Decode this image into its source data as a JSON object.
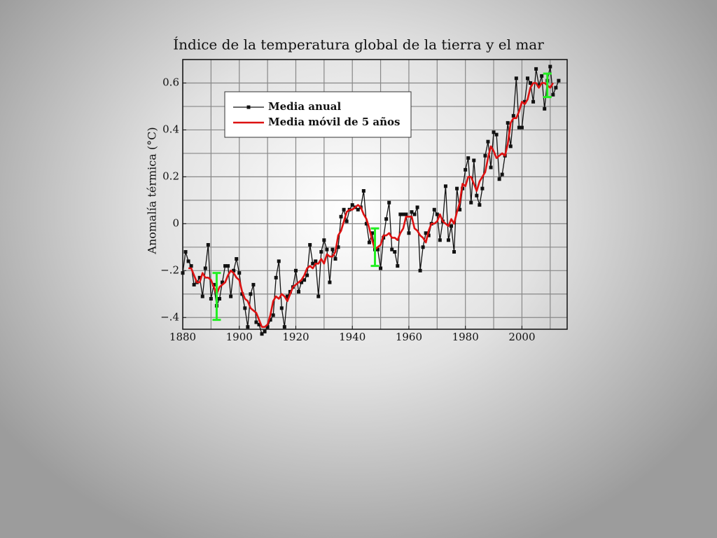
{
  "chart_data": {
    "type": "line",
    "title": "Índice de la temperatura global de la tierra y el mar",
    "y_label": "Anomalía térmica (°C)",
    "x": [
      1880,
      1881,
      1882,
      1883,
      1884,
      1885,
      1886,
      1887,
      1888,
      1889,
      1890,
      1891,
      1892,
      1893,
      1894,
      1895,
      1896,
      1897,
      1898,
      1899,
      1900,
      1901,
      1902,
      1903,
      1904,
      1905,
      1906,
      1907,
      1908,
      1909,
      1910,
      1911,
      1912,
      1913,
      1914,
      1915,
      1916,
      1917,
      1918,
      1919,
      1920,
      1921,
      1922,
      1923,
      1924,
      1925,
      1926,
      1927,
      1928,
      1929,
      1930,
      1931,
      1932,
      1933,
      1934,
      1935,
      1936,
      1937,
      1938,
      1939,
      1940,
      1941,
      1942,
      1943,
      1944,
      1945,
      1946,
      1947,
      1948,
      1949,
      1950,
      1951,
      1952,
      1953,
      1954,
      1955,
      1956,
      1957,
      1958,
      1959,
      1960,
      1961,
      1962,
      1963,
      1964,
      1965,
      1966,
      1967,
      1968,
      1969,
      1970,
      1971,
      1972,
      1973,
      1974,
      1975,
      1976,
      1977,
      1978,
      1979,
      1980,
      1981,
      1982,
      1983,
      1984,
      1985,
      1986,
      1987,
      1988,
      1989,
      1990,
      1991,
      1992,
      1993,
      1994,
      1995,
      1996,
      1997,
      1998,
      1999,
      2000,
      2001,
      2002,
      2003,
      2004,
      2005,
      2006,
      2007,
      2008,
      2009,
      2010,
      2011,
      2012,
      2013
    ],
    "series": [
      {
        "name": "Media anual",
        "color": "#111111",
        "marker": "square",
        "values": [
          -0.21,
          -0.12,
          -0.16,
          -0.18,
          -0.26,
          -0.25,
          -0.23,
          -0.31,
          -0.19,
          -0.09,
          -0.32,
          -0.26,
          -0.35,
          -0.32,
          -0.25,
          -0.18,
          -0.18,
          -0.31,
          -0.2,
          -0.15,
          -0.21,
          -0.3,
          -0.36,
          -0.44,
          -0.3,
          -0.26,
          -0.42,
          -0.43,
          -0.47,
          -0.46,
          -0.44,
          -0.41,
          -0.39,
          -0.23,
          -0.16,
          -0.36,
          -0.44,
          -0.31,
          -0.29,
          -0.27,
          -0.2,
          -0.29,
          -0.25,
          -0.24,
          -0.22,
          -0.09,
          -0.17,
          -0.16,
          -0.31,
          -0.12,
          -0.07,
          -0.11,
          -0.25,
          -0.11,
          -0.15,
          -0.1,
          0.03,
          0.06,
          0.01,
          0.06,
          0.08,
          0.07,
          0.06,
          0.07,
          0.14,
          0.0,
          -0.08,
          -0.04,
          -0.11,
          -0.11,
          -0.19,
          -0.06,
          0.02,
          0.09,
          -0.11,
          -0.12,
          -0.18,
          0.04,
          0.04,
          0.04,
          -0.04,
          0.05,
          0.04,
          0.07,
          -0.2,
          -0.1,
          -0.04,
          -0.05,
          0.0,
          0.06,
          0.04,
          -0.07,
          0.01,
          0.16,
          -0.07,
          -0.01,
          -0.12,
          0.15,
          0.06,
          0.15,
          0.23,
          0.28,
          0.09,
          0.27,
          0.12,
          0.08,
          0.15,
          0.29,
          0.35,
          0.24,
          0.39,
          0.38,
          0.19,
          0.21,
          0.29,
          0.43,
          0.33,
          0.46,
          0.62,
          0.41,
          0.41,
          0.52,
          0.62,
          0.6,
          0.52,
          0.66,
          0.59,
          0.63,
          0.49,
          0.61,
          0.67,
          0.55,
          0.58,
          0.61
        ]
      },
      {
        "name": "Media móvil de 5 años",
        "color": "#dd1111",
        "values": [
          null,
          null,
          -0.19,
          -0.19,
          -0.22,
          -0.25,
          -0.25,
          -0.21,
          -0.23,
          -0.23,
          -0.24,
          -0.27,
          -0.3,
          -0.27,
          -0.26,
          -0.25,
          -0.22,
          -0.2,
          -0.21,
          -0.23,
          -0.24,
          -0.29,
          -0.32,
          -0.33,
          -0.36,
          -0.37,
          -0.38,
          -0.41,
          -0.44,
          -0.44,
          -0.43,
          -0.39,
          -0.33,
          -0.31,
          -0.32,
          -0.3,
          -0.31,
          -0.33,
          -0.3,
          -0.27,
          -0.26,
          -0.25,
          -0.24,
          -0.22,
          -0.19,
          -0.18,
          -0.19,
          -0.17,
          -0.17,
          -0.15,
          -0.17,
          -0.13,
          -0.14,
          -0.14,
          -0.12,
          -0.05,
          -0.03,
          0.01,
          0.05,
          0.06,
          0.06,
          0.07,
          0.08,
          0.07,
          0.04,
          0.02,
          -0.02,
          -0.07,
          -0.11,
          -0.1,
          -0.09,
          -0.05,
          -0.05,
          -0.04,
          -0.06,
          -0.06,
          -0.07,
          -0.04,
          -0.02,
          0.03,
          0.03,
          0.03,
          -0.02,
          -0.03,
          -0.05,
          -0.06,
          -0.08,
          -0.03,
          0.0,
          0.0,
          0.01,
          0.04,
          0.01,
          0.0,
          -0.01,
          0.02,
          0.0,
          0.05,
          0.09,
          0.17,
          0.16,
          0.2,
          0.2,
          0.17,
          0.14,
          0.18,
          0.2,
          0.22,
          0.28,
          0.33,
          0.31,
          0.28,
          0.29,
          0.3,
          0.29,
          0.34,
          0.43,
          0.45,
          0.45,
          0.48,
          0.52,
          0.51,
          0.53,
          0.58,
          0.6,
          0.6,
          0.58,
          0.6,
          0.6,
          0.59,
          0.58,
          0.6,
          null,
          null
        ]
      }
    ],
    "error_bars": {
      "color": "#22ee22",
      "x": [
        1892,
        1948,
        2009
      ],
      "values": [
        -0.31,
        -0.1,
        0.59
      ],
      "errors": [
        0.1,
        0.08,
        0.05
      ]
    },
    "xlim": [
      1880,
      2016
    ],
    "ylim": [
      -0.45,
      0.7
    ],
    "xticks": [
      1880,
      1900,
      1920,
      1940,
      1960,
      1980,
      2000
    ],
    "yticks": [
      {
        "value": -0.4,
        "label": "−.4"
      },
      {
        "value": -0.2,
        "label": "−.2"
      },
      0,
      0.2,
      0.4,
      0.6
    ],
    "xgrid": [
      1880,
      1890,
      1900,
      1910,
      1920,
      1930,
      1940,
      1950,
      1960,
      1970,
      1980,
      1990,
      2000,
      2010
    ],
    "ygrid": [
      -0.4,
      -0.3,
      -0.2,
      -0.1,
      0,
      0.1,
      0.2,
      0.3,
      0.4,
      0.5,
      0.6,
      0.7
    ],
    "legend": "upper left"
  }
}
